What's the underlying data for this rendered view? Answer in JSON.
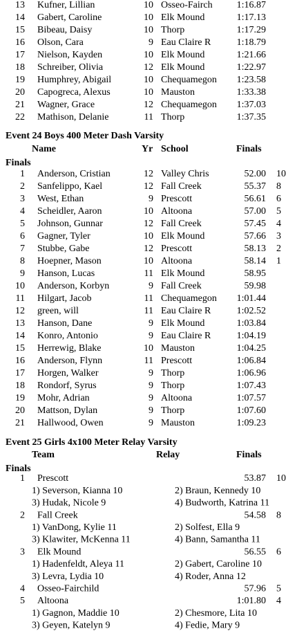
{
  "top_results": {
    "rows": [
      [
        "13",
        "Kufner, Lillian",
        "10",
        "Osseo-Fairch",
        "1:16.87"
      ],
      [
        "14",
        "Gabert, Caroline",
        "10",
        "Elk Mound",
        "1:17.13"
      ],
      [
        "15",
        "Bibeau, Daisy",
        "10",
        "Thorp",
        "1:17.29"
      ],
      [
        "16",
        "Olson, Cara",
        "9",
        "Eau Claire R",
        "1:18.79"
      ],
      [
        "17",
        "Nielson, Kayden",
        "10",
        "Elk Mound",
        "1:21.66"
      ],
      [
        "18",
        "Schreiber, Olivia",
        "12",
        "Elk Mound",
        "1:22.97"
      ],
      [
        "19",
        "Humphrey, Abigail",
        "10",
        "Chequamegon",
        "1:23.58"
      ],
      [
        "20",
        "Capogreca, Alexus",
        "10",
        "Mauston",
        "1:33.38"
      ],
      [
        "21",
        "Wagner, Grace",
        "12",
        "Chequamegon",
        "1:37.03"
      ],
      [
        "22",
        "Mathison, Delanie",
        "11",
        "Thorp",
        "1:37.35"
      ]
    ]
  },
  "event24": {
    "title": "Event 24  Boys 400 Meter Dash Varsity",
    "headers": [
      "Name",
      "Yr",
      "School",
      "Finals"
    ],
    "section": "Finals",
    "rows": [
      [
        "1",
        "Anderson, Cristian",
        "12",
        "Valley Chris",
        "52.00",
        "10"
      ],
      [
        "2",
        "Sanfelippo, Kael",
        "12",
        "Fall Creek",
        "55.37",
        "8"
      ],
      [
        "3",
        "West, Ethan",
        "9",
        "Prescott",
        "56.61",
        "6"
      ],
      [
        "4",
        "Scheidler, Aaron",
        "10",
        "Altoona",
        "57.00",
        "5"
      ],
      [
        "5",
        "Johnson, Gunnar",
        "12",
        "Fall Creek",
        "57.45",
        "4"
      ],
      [
        "6",
        "Gagner, Tyler",
        "10",
        "Elk Mound",
        "57.66",
        "3"
      ],
      [
        "7",
        "Stubbe, Gabe",
        "12",
        "Prescott",
        "58.13",
        "2"
      ],
      [
        "8",
        "Hoepner, Mason",
        "10",
        "Altoona",
        "58.14",
        "1"
      ],
      [
        "9",
        "Hanson, Lucas",
        "11",
        "Elk Mound",
        "58.95",
        null
      ],
      [
        "10",
        "Anderson, Korbyn",
        "9",
        "Fall Creek",
        "59.98",
        null
      ],
      [
        "11",
        "Hilgart, Jacob",
        "11",
        "Chequamegon",
        "1:01.44",
        null
      ],
      [
        "12",
        "green, will",
        "11",
        "Eau Claire R",
        "1:02.52",
        null
      ],
      [
        "13",
        "Hanson, Dane",
        "9",
        "Elk Mound",
        "1:03.84",
        null
      ],
      [
        "14",
        "Konro, Antonio",
        "9",
        "Eau Claire R",
        "1:04.19",
        null
      ],
      [
        "15",
        "Herrewig, Blake",
        "10",
        "Mauston",
        "1:04.25",
        null
      ],
      [
        "16",
        "Anderson, Flynn",
        "11",
        "Prescott",
        "1:06.84",
        null
      ],
      [
        "17",
        "Horgen, Walker",
        "9",
        "Thorp",
        "1:06.96",
        null
      ],
      [
        "18",
        "Rondorf, Syrus",
        "9",
        "Thorp",
        "1:07.43",
        null
      ],
      [
        "19",
        "Mohr, Adrian",
        "9",
        "Altoona",
        "1:07.57",
        null
      ],
      [
        "20",
        "Mattson, Dylan",
        "9",
        "Thorp",
        "1:07.60",
        null
      ],
      [
        "21",
        "Hallwood, Owen",
        "9",
        "Mauston",
        "1:09.23",
        null
      ]
    ]
  },
  "event25": {
    "title": "Event 25  Girls 4x100 Meter Relay Varsity",
    "headers": [
      "Team",
      "Relay",
      "Finals"
    ],
    "section": "Finals",
    "teams": [
      {
        "place": "1",
        "team": "Prescott",
        "time": "53.87",
        "points": "10",
        "members": [
          "1) Severson, Kianna 10",
          "2) Braun, Kennedy 10",
          "3) Hudak, Nicole 9",
          "4) Budworth, Katrina 11"
        ]
      },
      {
        "place": "2",
        "team": "Fall Creek",
        "time": "54.58",
        "points": "8",
        "members": [
          "1) VanDong, Kylie 11",
          "2) Solfest, Ella 9",
          "3) Klawiter, McKenna 11",
          "4) Bann, Samantha 11"
        ]
      },
      {
        "place": "3",
        "team": "Elk Mound",
        "time": "56.55",
        "points": "6",
        "members": [
          "1) Hadenfeldt, Aleya 11",
          "2) Gabert, Caroline 10",
          "3) Levra, Lydia 10",
          "4) Roder, Anna 12"
        ]
      },
      {
        "place": "4",
        "team": "Osseo-Fairchild",
        "time": "57.96",
        "points": "5",
        "members": []
      },
      {
        "place": "5",
        "team": "Altoona",
        "time": "1:01.80",
        "points": "4",
        "members": [
          "1) Gagnon, Maddie 10",
          "2) Chesmore, Lita 10",
          "3) Geyen, Katelyn 9",
          "4) Fedie, Mary 9"
        ]
      }
    ]
  }
}
